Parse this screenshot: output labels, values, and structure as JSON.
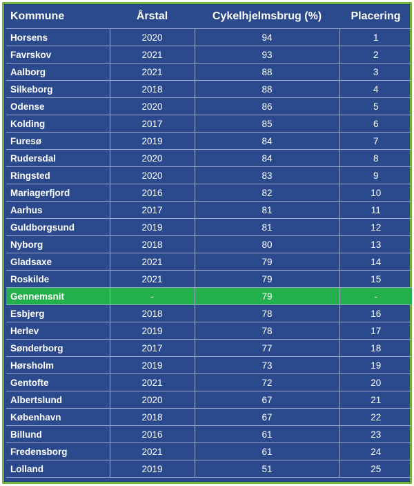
{
  "table": {
    "headers": [
      "Kommune",
      "Årstal",
      "Cykelhjelmsbrug (%)",
      "Placering"
    ],
    "rows": [
      [
        "Horsens",
        "2020",
        "94",
        "1"
      ],
      [
        "Favrskov",
        "2021",
        "93",
        "2"
      ],
      [
        "Aalborg",
        "2021",
        "88",
        "3"
      ],
      [
        "Silkeborg",
        "2018",
        "88",
        "4"
      ],
      [
        "Odense",
        "2020",
        "86",
        "5"
      ],
      [
        "Kolding",
        "2017",
        "85",
        "6"
      ],
      [
        "Furesø",
        "2019",
        "84",
        "7"
      ],
      [
        "Rudersdal",
        "2020",
        "84",
        "8"
      ],
      [
        "Ringsted",
        "2020",
        "83",
        "9"
      ],
      [
        "Mariagerfjord",
        "2016",
        "82",
        "10"
      ],
      [
        "Aarhus",
        "2017",
        "81",
        "11"
      ],
      [
        "Guldborgsund",
        "2019",
        "81",
        "12"
      ],
      [
        "Nyborg",
        "2018",
        "80",
        "13"
      ],
      [
        "Gladsaxe",
        "2021",
        "79",
        "14"
      ],
      [
        "Roskilde",
        "2021",
        "79",
        "15"
      ],
      [
        "Gennemsnit",
        "-",
        "79",
        "-"
      ],
      [
        "Esbjerg",
        "2018",
        "78",
        "16"
      ],
      [
        "Herlev",
        "2019",
        "78",
        "17"
      ],
      [
        "Sønderborg",
        "2017",
        "77",
        "18"
      ],
      [
        "Hørsholm",
        "2019",
        "73",
        "19"
      ],
      [
        "Gentofte",
        "2021",
        "72",
        "20"
      ],
      [
        "Albertslund",
        "2020",
        "67",
        "21"
      ],
      [
        "København",
        "2018",
        "67",
        "22"
      ],
      [
        "Billund",
        "2016",
        "61",
        "23"
      ],
      [
        "Fredensborg",
        "2021",
        "61",
        "24"
      ],
      [
        "Lolland",
        "2019",
        "51",
        "25"
      ]
    ],
    "highlight_row": "Gennemsnit"
  },
  "colors": {
    "background": "#2b4a8e",
    "border": "#6db33f",
    "highlight": "#21b04b",
    "text": "#ffffff"
  }
}
